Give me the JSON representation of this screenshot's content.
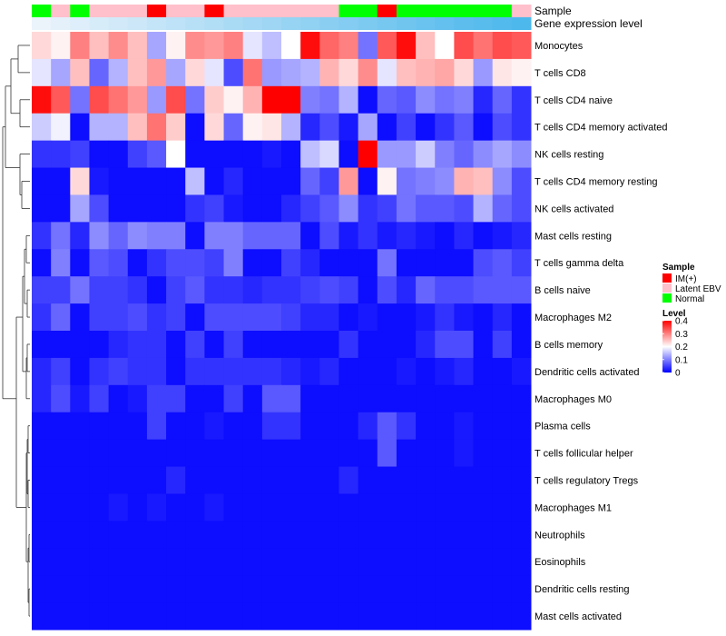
{
  "chart_data": {
    "type": "heatmap",
    "annotation_rows": [
      "Sample",
      "Gene expression level"
    ],
    "samples": [
      "Normal",
      "Latent EBV",
      "Normal",
      "Latent EBV",
      "Latent EBV",
      "Latent EBV",
      "IM(+)",
      "Latent EBV",
      "Latent EBV",
      "IM(+)",
      "Latent EBV",
      "Latent EBV",
      "Latent EBV",
      "Latent EBV",
      "Latent EBV",
      "Latent EBV",
      "Normal",
      "Normal",
      "IM(+)",
      "Normal",
      "Normal",
      "Normal",
      "Normal",
      "Normal",
      "Normal",
      "Latent EBV"
    ],
    "gene_expression_level": [
      0.02,
      0.06,
      0.1,
      0.14,
      0.18,
      0.22,
      0.26,
      0.3,
      0.34,
      0.38,
      0.42,
      0.46,
      0.5,
      0.54,
      0.58,
      0.62,
      0.66,
      0.7,
      0.74,
      0.78,
      0.82,
      0.86,
      0.9,
      0.93,
      0.96,
      1.0
    ],
    "rows": [
      "Monocytes",
      "T cells CD8",
      "T cells CD4 naive",
      "T cells CD4 memory activated",
      "NK cells resting",
      "T cells CD4 memory resting",
      "NK cells activated",
      "Mast cells resting",
      "T cells gamma delta",
      "B cells naive",
      "Macrophages M2",
      "B cells memory",
      "Dendritic cells activated",
      "Macrophages M0",
      "Plasma cells",
      "T cells follicular helper",
      "T cells regulatory  Tregs",
      "Macrophages M1",
      "Neutrophils",
      "Eosinophils",
      "Dendritic cells resting",
      "Mast cells activated"
    ],
    "values": [
      [
        0.23,
        0.21,
        0.3,
        0.25,
        0.29,
        0.25,
        0.13,
        0.21,
        0.29,
        0.28,
        0.3,
        0.18,
        0.15,
        0.2,
        0.39,
        0.32,
        0.3,
        0.09,
        0.33,
        0.39,
        0.25,
        0.2,
        0.34,
        0.31,
        0.34,
        0.33
      ],
      [
        0.18,
        0.13,
        0.25,
        0.08,
        0.14,
        0.25,
        0.28,
        0.13,
        0.23,
        0.18,
        0.06,
        0.31,
        0.12,
        0.13,
        0.14,
        0.26,
        0.23,
        0.29,
        0.18,
        0.25,
        0.26,
        0.27,
        0.23,
        0.12,
        0.22,
        0.21
      ],
      [
        0.39,
        0.33,
        0.09,
        0.34,
        0.31,
        0.28,
        0.12,
        0.34,
        0.09,
        0.24,
        0.21,
        0.26,
        0.4,
        0.4,
        0.1,
        0.09,
        0.14,
        0.01,
        0.08,
        0.07,
        0.11,
        0.09,
        0.1,
        0.03,
        0.08,
        0.04
      ],
      [
        0.16,
        0.19,
        0.01,
        0.14,
        0.14,
        0.25,
        0.31,
        0.24,
        0.01,
        0.23,
        0.08,
        0.21,
        0.22,
        0.14,
        0.03,
        0.06,
        0.02,
        0.13,
        0.01,
        0.05,
        0.01,
        0.04,
        0.07,
        0.01,
        0.06,
        0.04
      ],
      [
        0.04,
        0.04,
        0.05,
        0.01,
        0.01,
        0.05,
        0.07,
        0.2,
        0.01,
        0.01,
        0.01,
        0.01,
        0.02,
        0.01,
        0.15,
        0.17,
        0.01,
        0.4,
        0.12,
        0.12,
        0.16,
        0.1,
        0.08,
        0.11,
        0.13,
        0.11
      ],
      [
        0.01,
        0.01,
        0.23,
        0.02,
        0.01,
        0.01,
        0.01,
        0.01,
        0.15,
        0.01,
        0.03,
        0.01,
        0.01,
        0.01,
        0.08,
        0.05,
        0.28,
        0.01,
        0.21,
        0.09,
        0.1,
        0.11,
        0.26,
        0.25,
        0.11,
        0.06
      ],
      [
        0.01,
        0.01,
        0.13,
        0.06,
        0.01,
        0.01,
        0.01,
        0.01,
        0.04,
        0.05,
        0.02,
        0.01,
        0.01,
        0.03,
        0.05,
        0.07,
        0.11,
        0.04,
        0.05,
        0.09,
        0.07,
        0.07,
        0.06,
        0.14,
        0.08,
        0.06
      ],
      [
        0.04,
        0.09,
        0.03,
        0.11,
        0.08,
        0.11,
        0.1,
        0.1,
        0.01,
        0.1,
        0.1,
        0.08,
        0.08,
        0.08,
        0.01,
        0.06,
        0.02,
        0.04,
        0.02,
        0.03,
        0.02,
        0.01,
        0.03,
        0.01,
        0.02,
        0.03
      ],
      [
        0.01,
        0.1,
        0.01,
        0.07,
        0.06,
        0.01,
        0.04,
        0.06,
        0.06,
        0.05,
        0.1,
        0.01,
        0.01,
        0.05,
        0.03,
        0.01,
        0.01,
        0.01,
        0.09,
        0.01,
        0.01,
        0.01,
        0.01,
        0.06,
        0.07,
        0.05
      ],
      [
        0.05,
        0.05,
        0.09,
        0.05,
        0.05,
        0.04,
        0.01,
        0.05,
        0.07,
        0.04,
        0.04,
        0.03,
        0.04,
        0.04,
        0.05,
        0.06,
        0.05,
        0.01,
        0.06,
        0.03,
        0.08,
        0.06,
        0.06,
        0.07,
        0.07,
        0.07
      ],
      [
        0.04,
        0.08,
        0.01,
        0.05,
        0.05,
        0.06,
        0.04,
        0.05,
        0.01,
        0.06,
        0.06,
        0.06,
        0.06,
        0.05,
        0.03,
        0.03,
        0.01,
        0.02,
        0.01,
        0.01,
        0.02,
        0.04,
        0.02,
        0.01,
        0.03,
        0.01
      ],
      [
        0.01,
        0.01,
        0.01,
        0.01,
        0.03,
        0.04,
        0.04,
        0.01,
        0.05,
        0.01,
        0.05,
        0.01,
        0.01,
        0.01,
        0.01,
        0.01,
        0.04,
        0.01,
        0.01,
        0.01,
        0.03,
        0.06,
        0.06,
        0.01,
        0.05,
        0.01
      ],
      [
        0.03,
        0.05,
        0.01,
        0.04,
        0.05,
        0.04,
        0.04,
        0.01,
        0.04,
        0.04,
        0.04,
        0.04,
        0.04,
        0.03,
        0.02,
        0.03,
        0.01,
        0.01,
        0.01,
        0.02,
        0.01,
        0.02,
        0.03,
        0.01,
        0.01,
        0.02
      ],
      [
        0.03,
        0.06,
        0.02,
        0.05,
        0.01,
        0.02,
        0.05,
        0.05,
        0.01,
        0.01,
        0.05,
        0.01,
        0.07,
        0.07,
        0.01,
        0.01,
        0.01,
        0.01,
        0.01,
        0.01,
        0.01,
        0.01,
        0.01,
        0.01,
        0.01,
        0.01
      ],
      [
        0.01,
        0.01,
        0.01,
        0.01,
        0.01,
        0.01,
        0.05,
        0.01,
        0.01,
        0.02,
        0.01,
        0.01,
        0.04,
        0.04,
        0.01,
        0.01,
        0.01,
        0.03,
        0.07,
        0.04,
        0.01,
        0.01,
        0.02,
        0.01,
        0.01,
        0.01
      ],
      [
        0.01,
        0.01,
        0.01,
        0.01,
        0.01,
        0.01,
        0.01,
        0.01,
        0.01,
        0.01,
        0.01,
        0.01,
        0.01,
        0.01,
        0.01,
        0.01,
        0.01,
        0.01,
        0.07,
        0.01,
        0.01,
        0.01,
        0.02,
        0.01,
        0.01,
        0.01
      ],
      [
        0.01,
        0.01,
        0.01,
        0.01,
        0.01,
        0.01,
        0.01,
        0.03,
        0.01,
        0.01,
        0.01,
        0.01,
        0.01,
        0.01,
        0.01,
        0.01,
        0.03,
        0.01,
        0.01,
        0.01,
        0.01,
        0.01,
        0.01,
        0.01,
        0.01,
        0.01
      ],
      [
        0.01,
        0.01,
        0.01,
        0.01,
        0.02,
        0.01,
        0.02,
        0.01,
        0.01,
        0.02,
        0.01,
        0.01,
        0.01,
        0.01,
        0.01,
        0.01,
        0.01,
        0.01,
        0.01,
        0.01,
        0.01,
        0.01,
        0.01,
        0.01,
        0.01,
        0.01
      ],
      [
        0.01,
        0.01,
        0.01,
        0.01,
        0.01,
        0.01,
        0.01,
        0.01,
        0.01,
        0.01,
        0.01,
        0.01,
        0.01,
        0.01,
        0.01,
        0.01,
        0.01,
        0.01,
        0.01,
        0.01,
        0.01,
        0.01,
        0.01,
        0.01,
        0.01,
        0.01
      ],
      [
        0.01,
        0.01,
        0.01,
        0.01,
        0.01,
        0.01,
        0.01,
        0.01,
        0.01,
        0.01,
        0.01,
        0.01,
        0.01,
        0.01,
        0.01,
        0.01,
        0.01,
        0.01,
        0.01,
        0.01,
        0.01,
        0.01,
        0.01,
        0.01,
        0.01,
        0.01
      ],
      [
        0.01,
        0.01,
        0.01,
        0.01,
        0.01,
        0.01,
        0.01,
        0.01,
        0.01,
        0.01,
        0.01,
        0.01,
        0.01,
        0.01,
        0.01,
        0.01,
        0.01,
        0.01,
        0.01,
        0.01,
        0.01,
        0.01,
        0.01,
        0.01,
        0.01,
        0.01
      ],
      [
        0.01,
        0.01,
        0.01,
        0.01,
        0.01,
        0.01,
        0.01,
        0.01,
        0.01,
        0.01,
        0.01,
        0.01,
        0.01,
        0.01,
        0.01,
        0.01,
        0.01,
        0.01,
        0.01,
        0.01,
        0.01,
        0.01,
        0.01,
        0.01,
        0.01,
        0.01
      ]
    ],
    "scale": {
      "min": 0,
      "max": 0.4,
      "mid": 0.2
    },
    "colors": {
      "low": "#0000ff",
      "mid": "#ffffff",
      "high": "#ff0000",
      "gel_low": "#eef4fb",
      "gel_high": "#4db8ec"
    },
    "legend": {
      "sample_title": "Sample",
      "sample_entries": [
        {
          "label": "IM(+)",
          "color": "#ff0000"
        },
        {
          "label": "Latent EBV",
          "color": "#ffc0cb"
        },
        {
          "label": "Normal",
          "color": "#00ff00"
        }
      ],
      "level_title": "Level",
      "level_ticks": [
        "0.4",
        "0.3",
        "0.2",
        "0.1",
        "0"
      ],
      "level_tick_values": [
        0.4,
        0.3,
        0.2,
        0.1,
        0.0
      ]
    },
    "dendrogram": "hierarchical clustering of rows (left side)"
  }
}
